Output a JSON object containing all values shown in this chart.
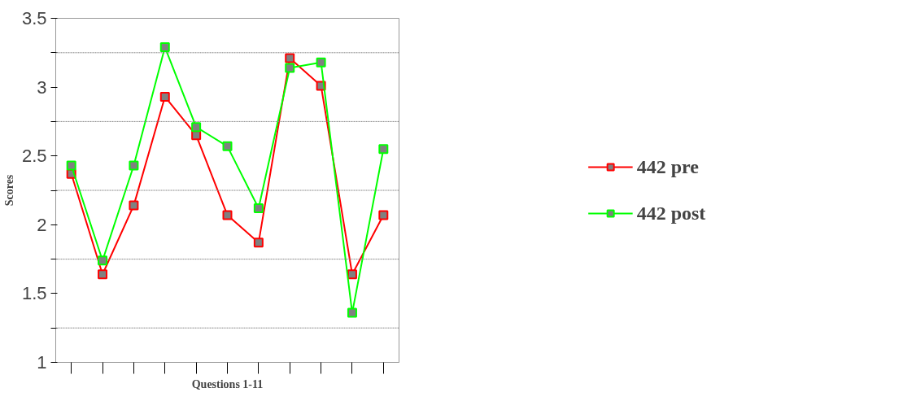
{
  "chart_data": {
    "type": "line",
    "xlabel": "Questions 1-11",
    "ylabel": "Scores",
    "categories": [
      null,
      null,
      null,
      null,
      null,
      null,
      null,
      null,
      null,
      null,
      null
    ],
    "series": [
      {
        "name": "442 pre",
        "color": "#ff0000",
        "values": [
          2.37,
          1.64,
          2.14,
          2.93,
          2.65,
          2.07,
          1.87,
          3.21,
          3.01,
          1.64,
          2.07
        ]
      },
      {
        "name": "442 post",
        "color": "#00ff00",
        "values": [
          2.43,
          1.74,
          2.43,
          3.29,
          2.71,
          2.57,
          2.12,
          3.14,
          3.18,
          1.36,
          2.55
        ]
      }
    ],
    "ylim": [
      1,
      3.5
    ],
    "yticks": [
      1,
      {
        "value": 1.25,
        "label": null
      },
      1.5,
      {
        "value": 1.75,
        "label": null
      },
      2,
      {
        "value": 2.25,
        "label": null
      },
      2.5,
      {
        "value": 2.75,
        "label": null
      },
      3,
      {
        "value": 3.25,
        "label": null
      },
      3.5
    ],
    "grid": "y",
    "legend": "right",
    "marker": "square",
    "line_style": "solid"
  }
}
